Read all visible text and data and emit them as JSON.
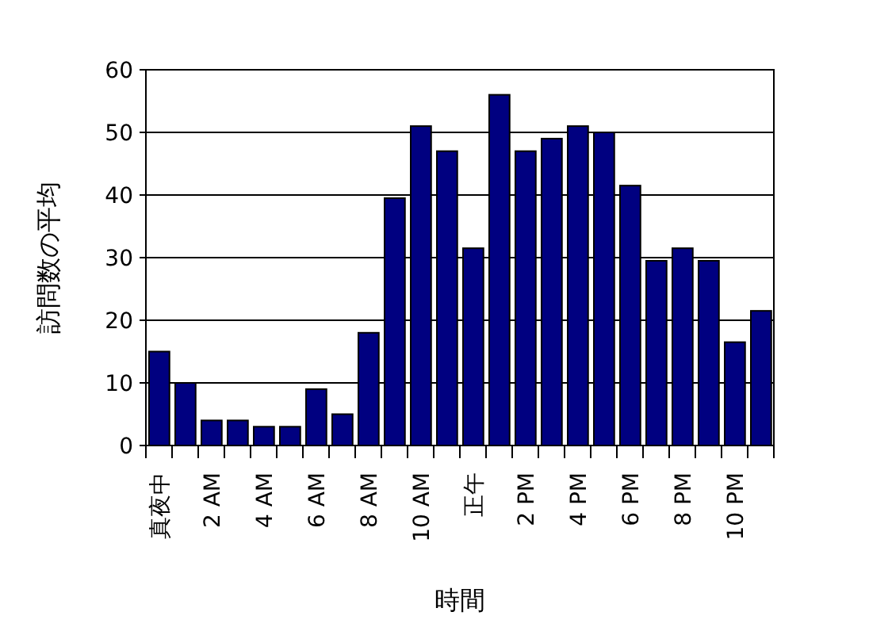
{
  "chart_data": {
    "type": "bar",
    "xlabel": "時間",
    "ylabel": "訪問数の平均",
    "categories": [
      "真夜中",
      null,
      "2 AM",
      null,
      "4 AM",
      null,
      "6 AM",
      null,
      "8 AM",
      null,
      "10 AM",
      null,
      "正午",
      null,
      "2 PM",
      null,
      "4 PM",
      null,
      "6 PM",
      null,
      "8 PM",
      null,
      "10 PM",
      null
    ],
    "series": [
      {
        "color": "#000080",
        "values": [
          15,
          10,
          4,
          4,
          3,
          3,
          9,
          5,
          18,
          39.5,
          51,
          47,
          31.5,
          56,
          47,
          49,
          51,
          50,
          41.5,
          29.5,
          31.5,
          29.5,
          16.5,
          21.5
        ]
      }
    ],
    "ylim": [
      0,
      60
    ],
    "yticks": [
      0,
      10,
      20,
      30,
      40,
      50,
      60
    ],
    "grid": "y"
  }
}
